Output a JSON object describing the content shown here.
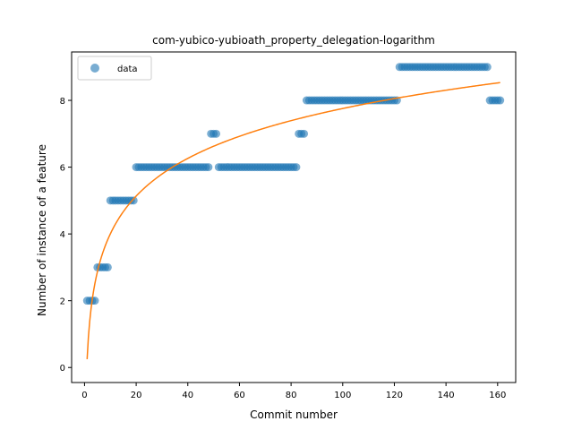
{
  "chart_data": {
    "type": "scatter",
    "title": "com-yubico-yubioath_property_delegation-logarithm",
    "xlabel": "Commit number",
    "ylabel": "Number of instance of a feature",
    "xlim": [
      -5,
      167
    ],
    "ylim": [
      -0.45,
      9.45
    ],
    "xticks": [
      0,
      20,
      40,
      60,
      80,
      100,
      120,
      140,
      160
    ],
    "yticks": [
      0,
      2,
      4,
      6,
      8
    ],
    "grid": false,
    "legend": {
      "position": "top-left",
      "entries": [
        "data"
      ]
    },
    "colors": {
      "data": "#1f77b4",
      "fit": "#ff7f0e"
    },
    "series": [
      {
        "name": "data",
        "kind": "scatter",
        "runs": [
          {
            "x_start": 1,
            "x_end": 4,
            "y": 2
          },
          {
            "x_start": 5,
            "x_end": 9,
            "y": 3
          },
          {
            "x_start": 10,
            "x_end": 19,
            "y": 5
          },
          {
            "x_start": 20,
            "x_end": 48,
            "y": 6
          },
          {
            "x_start": 49,
            "x_end": 51,
            "y": 7
          },
          {
            "x_start": 52,
            "x_end": 82,
            "y": 6
          },
          {
            "x_start": 83,
            "x_end": 85,
            "y": 7
          },
          {
            "x_start": 86,
            "x_end": 121,
            "y": 8
          },
          {
            "x_start": 122,
            "x_end": 156,
            "y": 9
          },
          {
            "x_start": 157,
            "x_end": 161,
            "y": 8
          }
        ]
      },
      {
        "kind": "line",
        "model": "logarithmic",
        "a": 0.25,
        "b": 1.63,
        "x_range": [
          1,
          161
        ]
      }
    ]
  }
}
